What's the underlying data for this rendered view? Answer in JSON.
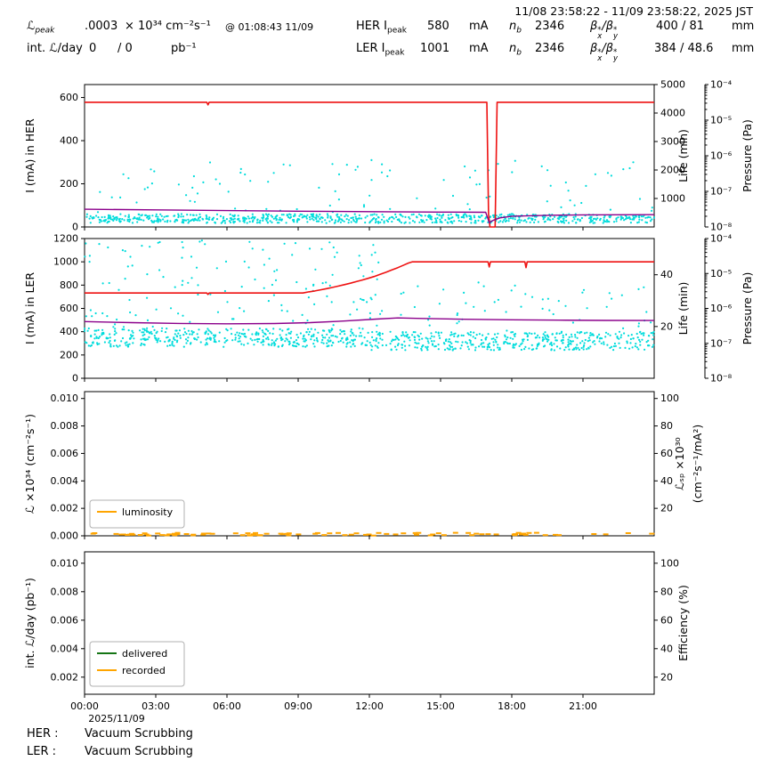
{
  "header": {
    "time_range": "11/08 23:58:22 - 11/09 23:58:22, 2025 JST",
    "lpeak": {
      "sym": "ℒ",
      "sub": "peak",
      "value": ".0003",
      "units": "× 10³⁴ cm⁻²s⁻¹",
      "timestamp": "@ 01:08:43 11/09"
    },
    "intl": {
      "label": "int. ℒ/day",
      "value": "0",
      "value2": "/ 0",
      "units": "pb⁻¹"
    },
    "her": {
      "label": "HER I",
      "label_sub": "peak",
      "current": "580",
      "current_unit": "mA",
      "nb_sym": "n",
      "nb_sub": "b",
      "nb_value": "2346",
      "beta_sym": "β",
      "beta_sup": "*",
      "beta_sub_x": "x",
      "beta_sub_y": "y",
      "beta_sep": "/",
      "beta_values": "400 / 81",
      "beta_unit": "mm"
    },
    "ler": {
      "label": "LER I",
      "label_sub": "peak",
      "current": "1001",
      "current_unit": "mA",
      "nb_sym": "n",
      "nb_sub": "b",
      "nb_value": "2346",
      "beta_sym": "β",
      "beta_sup": "*",
      "beta_sub_x": "x",
      "beta_sub_y": "y",
      "beta_sep": "/",
      "beta_values": "384 / 48.6",
      "beta_unit": "mm"
    }
  },
  "footer": {
    "her_label": "HER :",
    "her_status": "Vacuum Scrubbing",
    "ler_label": "LER :",
    "ler_status": "Vacuum Scrubbing"
  },
  "chart_data": {
    "type": "multi-panel-time-series",
    "xaxis": {
      "min": 0,
      "max": 24,
      "tick_vals": [
        0,
        3,
        6,
        9,
        12,
        15,
        18,
        21
      ],
      "tick_labels": [
        "00:00",
        "03:00",
        "06:00",
        "09:00",
        "12:00",
        "15:00",
        "18:00",
        "21:00"
      ],
      "date_label": "2025/11/09"
    },
    "pressure_ticks": [
      "10⁻⁴",
      "10⁻⁵",
      "10⁻⁶",
      "10⁻⁷",
      "10⁻⁸"
    ],
    "charts": [
      {
        "id": "her-current",
        "ylabel_left": "I (mA) in HER",
        "ylim_left": [
          0,
          660
        ],
        "yticks_left": {
          "vals": [
            0,
            200,
            400,
            600
          ],
          "labels": [
            "0",
            "200",
            "400",
            "600"
          ]
        },
        "ylabel_right": "Life (min)",
        "ylim_right": [
          0,
          5000
        ],
        "yticks_right": {
          "vals": [
            1000,
            2000,
            3000,
            4000,
            5000
          ],
          "labels": [
            "1000",
            "2000",
            "3000",
            "4000",
            "5000"
          ]
        },
        "pressure_axis": true,
        "ylabel_pressure": "Pressure (Pa)",
        "series": [
          {
            "name": "her-beam-current",
            "label": "HER beam current (mA)",
            "color": "#ee1111",
            "width": 1.6,
            "points": [
              [
                0,
                578
              ],
              [
                5.15,
                578
              ],
              [
                5.2,
                566
              ],
              [
                5.25,
                578
              ],
              [
                16.95,
                578
              ],
              [
                17.02,
                60
              ],
              [
                17.08,
                0
              ],
              [
                17.3,
                0
              ],
              [
                17.38,
                578
              ],
              [
                24,
                578
              ]
            ]
          },
          {
            "name": "her-lifetime",
            "label": "HER lifetime (plotted vs Life axis)",
            "color": "#8b008b",
            "width": 1.4,
            "points": [
              [
                0,
                82
              ],
              [
                3,
                79
              ],
              [
                6,
                76
              ],
              [
                9,
                73
              ],
              [
                12,
                71
              ],
              [
                15,
                69
              ],
              [
                16.9,
                68
              ],
              [
                17.05,
                20
              ],
              [
                17.2,
                30
              ],
              [
                17.5,
                42
              ],
              [
                18,
                50
              ],
              [
                19.5,
                54
              ],
              [
                21,
                56
              ],
              [
                24,
                57
              ]
            ]
          }
        ],
        "scatter": [
          {
            "name": "her-pressure-band",
            "color": "#00dcdc",
            "seed": 101,
            "n": 760,
            "xrange": [
              0,
              24
            ],
            "yrange": [
              18,
              60
            ]
          },
          {
            "name": "her-pressure-outliers",
            "color": "#00dcdc",
            "seed": 102,
            "n": 95,
            "xrange": [
              0,
              24
            ],
            "yrange": [
              62,
              310
            ]
          }
        ]
      },
      {
        "id": "ler-current",
        "ylabel_left": "I (mA) in LER",
        "ylim_left": [
          0,
          1200
        ],
        "yticks_left": {
          "vals": [
            0,
            200,
            400,
            600,
            800,
            1000,
            1200
          ],
          "labels": [
            "0",
            "200",
            "400",
            "600",
            "800",
            "1000",
            "1200"
          ]
        },
        "ylabel_right": "Life (min)",
        "ylim_right": [
          0,
          54
        ],
        "yticks_right": {
          "vals": [
            20,
            40
          ],
          "labels": [
            "20",
            "40"
          ]
        },
        "pressure_axis": true,
        "ylabel_pressure": "Pressure (Pa)",
        "series": [
          {
            "name": "ler-beam-current",
            "label": "LER beam current (mA)",
            "color": "#ee1111",
            "width": 1.6,
            "points": [
              [
                0,
                732
              ],
              [
                5.15,
                732
              ],
              [
                5.2,
                720
              ],
              [
                5.25,
                732
              ],
              [
                9.2,
                732
              ],
              [
                9.45,
                742
              ],
              [
                9.7,
                750
              ],
              [
                9.95,
                760
              ],
              [
                10.2,
                770
              ],
              [
                10.45,
                780
              ],
              [
                10.7,
                792
              ],
              [
                10.95,
                804
              ],
              [
                11.2,
                816
              ],
              [
                11.45,
                830
              ],
              [
                11.7,
                844
              ],
              [
                11.95,
                858
              ],
              [
                12.2,
                874
              ],
              [
                12.45,
                892
              ],
              [
                12.7,
                910
              ],
              [
                12.95,
                930
              ],
              [
                13.2,
                950
              ],
              [
                13.45,
                972
              ],
              [
                13.65,
                990
              ],
              [
                13.8,
                1000
              ],
              [
                17.0,
                1000
              ],
              [
                17.05,
                956
              ],
              [
                17.1,
                1000
              ],
              [
                18.55,
                1000
              ],
              [
                18.6,
                950
              ],
              [
                18.65,
                1000
              ],
              [
                24,
                1000
              ]
            ]
          },
          {
            "name": "ler-lifetime",
            "label": "LER lifetime (plotted vs Life axis)",
            "color": "#8b008b",
            "width": 1.4,
            "points": [
              [
                0,
                487
              ],
              [
                2,
                478
              ],
              [
                4,
                471
              ],
              [
                6,
                468
              ],
              [
                8,
                470
              ],
              [
                9.5,
                478
              ],
              [
                11,
                492
              ],
              [
                12.3,
                508
              ],
              [
                13.2,
                518
              ],
              [
                14.2,
                514
              ],
              [
                16,
                507
              ],
              [
                18,
                502
              ],
              [
                20,
                499
              ],
              [
                22,
                497
              ],
              [
                24,
                496
              ]
            ]
          }
        ],
        "scatter": [
          {
            "name": "ler-pressure-band-a",
            "color": "#00dcdc",
            "seed": 201,
            "n": 430,
            "xrange": [
              0,
              12
            ],
            "yrange": [
              270,
              430
            ]
          },
          {
            "name": "ler-pressure-band-b",
            "color": "#00dcdc",
            "seed": 202,
            "n": 430,
            "xrange": [
              12,
              24
            ],
            "yrange": [
              240,
              400
            ]
          },
          {
            "name": "ler-pressure-outliers-a",
            "color": "#00dcdc",
            "seed": 203,
            "n": 140,
            "xrange": [
              0,
              12.5
            ],
            "yrange": [
              440,
              1185
            ]
          },
          {
            "name": "ler-pressure-outliers-b",
            "color": "#00dcdc",
            "seed": 204,
            "n": 55,
            "xrange": [
              12.5,
              24
            ],
            "yrange": [
              405,
              830
            ]
          }
        ]
      },
      {
        "id": "luminosity",
        "ylabel_left": "ℒ ×10³⁴ (cm⁻²s⁻¹)",
        "ylim_left": [
          0,
          0.0105
        ],
        "yticks_left": {
          "vals": [
            0,
            0.002,
            0.004,
            0.006,
            0.008,
            0.01
          ],
          "labels": [
            "0.000",
            "0.002",
            "0.004",
            "0.006",
            "0.008",
            "0.010"
          ]
        },
        "ylabel_right_lines": [
          "ℒₛₚ ×10³⁰",
          "(cm⁻²s⁻¹/mA²)"
        ],
        "ylim_right": [
          0,
          105
        ],
        "yticks_right": {
          "vals": [
            20,
            40,
            60,
            80,
            100
          ],
          "labels": [
            "20",
            "40",
            "60",
            "80",
            "100"
          ]
        },
        "legend": [
          {
            "label": "luminosity",
            "color": "#ffa500"
          }
        ],
        "dashes": {
          "name": "luminosity-samples",
          "label": "luminosity ≈ 0",
          "color": "#ffa500",
          "seed": 301,
          "n": 90,
          "xrange": [
            0,
            24
          ],
          "yrange": [
            2e-05,
            0.00022
          ]
        }
      },
      {
        "id": "integrated-luminosity",
        "ylabel_left": "int. ℒ/day (pb⁻¹)",
        "ylim_left": [
          0.0008,
          0.0108
        ],
        "yticks_left": {
          "vals": [
            0.002,
            0.004,
            0.006,
            0.008,
            0.01
          ],
          "labels": [
            "0.002",
            "0.004",
            "0.006",
            "0.008",
            "0.010"
          ]
        },
        "ylabel_right": "Efficiency (%)",
        "ylim_right": [
          8,
          108
        ],
        "yticks_right": {
          "vals": [
            20,
            40,
            60,
            80,
            100
          ],
          "labels": [
            "20",
            "40",
            "60",
            "80",
            "100"
          ]
        },
        "legend": [
          {
            "label": "delivered",
            "color": "#157515"
          },
          {
            "label": "recorded",
            "color": "#ffa500"
          }
        ],
        "show_x_labels": true
      }
    ]
  }
}
